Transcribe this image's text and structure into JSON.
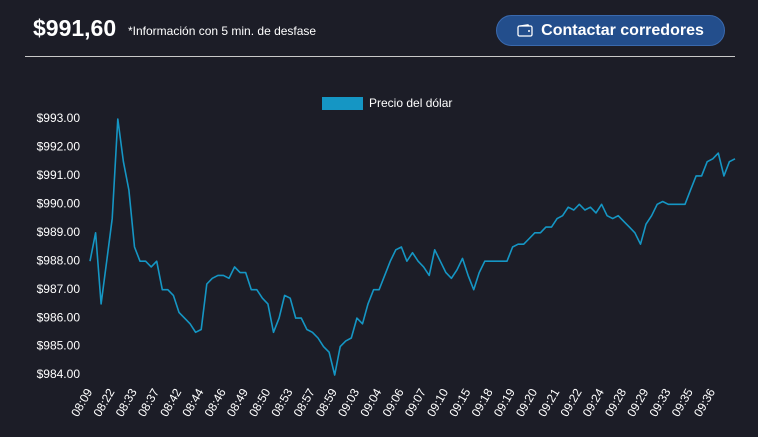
{
  "header": {
    "price": "$991,60",
    "note": "*Información con 5 min. de desfase",
    "button": "Contactar corredores"
  },
  "chart_data": {
    "type": "line",
    "categories": [
      "08:09",
      null,
      null,
      null,
      "08:22",
      null,
      null,
      null,
      "08:33",
      null,
      null,
      null,
      "08:37",
      null,
      null,
      null,
      "08:42",
      null,
      null,
      null,
      "08:44",
      null,
      null,
      null,
      "08:46",
      null,
      null,
      null,
      "08:49",
      null,
      null,
      null,
      "08:50",
      null,
      null,
      null,
      "08:53",
      null,
      null,
      null,
      "08:57",
      null,
      null,
      null,
      "08:59",
      null,
      null,
      null,
      "09:03",
      null,
      null,
      null,
      "09:04",
      null,
      null,
      null,
      "09:06",
      null,
      null,
      null,
      "09:07",
      null,
      null,
      null,
      "09:10",
      null,
      null,
      null,
      "09:15",
      null,
      null,
      null,
      "09:18",
      null,
      null,
      null,
      "09:19",
      null,
      null,
      null,
      "09:20",
      null,
      null,
      null,
      "09:21",
      null,
      null,
      null,
      "09:22",
      null,
      null,
      null,
      "09:24",
      null,
      null,
      null,
      "09:28",
      null,
      null,
      null,
      "09:29",
      null,
      null,
      null,
      "09:33",
      null,
      null,
      null,
      "09:35",
      null,
      null,
      null,
      "09:36",
      null,
      null,
      null,
      null
    ],
    "series": [
      {
        "name": "Precio del dólar",
        "color": "#1596c4",
        "values": [
          988.0,
          989.0,
          986.5,
          988.0,
          989.5,
          993.0,
          991.5,
          990.5,
          988.5,
          988.0,
          988.0,
          987.8,
          988.0,
          987.0,
          987.0,
          986.8,
          986.2,
          986.0,
          985.8,
          985.5,
          985.6,
          987.2,
          987.4,
          987.5,
          987.5,
          987.4,
          987.8,
          987.6,
          987.6,
          987.0,
          987.0,
          986.7,
          986.5,
          985.5,
          986.0,
          986.8,
          986.7,
          986.0,
          986.0,
          985.6,
          985.5,
          985.3,
          985.0,
          984.8,
          984.0,
          985.0,
          985.2,
          985.3,
          986.0,
          985.8,
          986.5,
          987.0,
          987.0,
          987.5,
          988.0,
          988.4,
          988.5,
          988.0,
          988.3,
          988.0,
          987.8,
          987.5,
          988.4,
          988.0,
          987.6,
          987.4,
          987.7,
          988.1,
          987.5,
          987.0,
          987.6,
          988.0,
          988.0,
          988.0,
          988.0,
          988.0,
          988.5,
          988.6,
          988.6,
          988.8,
          989.0,
          989.0,
          989.2,
          989.2,
          989.5,
          989.6,
          989.9,
          989.8,
          990.0,
          989.8,
          989.9,
          989.7,
          990.0,
          989.6,
          989.5,
          989.6,
          989.4,
          989.2,
          989.0,
          988.6,
          989.3,
          989.6,
          990.0,
          990.1,
          990.0,
          990.0,
          990.0,
          990.0,
          990.5,
          991.0,
          991.0,
          991.5,
          991.6,
          991.8,
          991.0,
          991.5,
          991.6
        ]
      }
    ],
    "ylim": [
      984,
      993
    ],
    "yticks": [
      {
        "value": 984,
        "label": "$984.00"
      },
      {
        "value": 985,
        "label": "$985.00"
      },
      {
        "value": 986,
        "label": "$986.00"
      },
      {
        "value": 987,
        "label": "$987.00"
      },
      {
        "value": 988,
        "label": "$988.00"
      },
      {
        "value": 989,
        "label": "$989.00"
      },
      {
        "value": 990,
        "label": "$990.00"
      },
      {
        "value": 991,
        "label": "$991.00"
      },
      {
        "value": 992,
        "label": "$992.00"
      },
      {
        "value": 993,
        "label": "$993.00"
      }
    ],
    "grid": false,
    "legend": "top"
  }
}
